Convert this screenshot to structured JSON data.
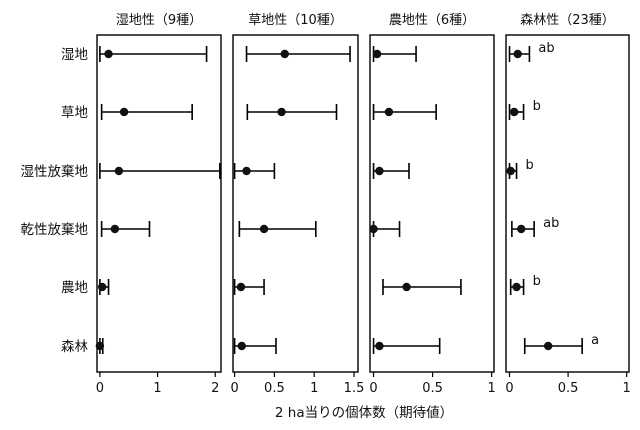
{
  "chart_data": {
    "type": "forest",
    "xlabel": "2 ha当りの個体数（期待値）",
    "categories": [
      "湿地",
      "草地",
      "湿性放棄地",
      "乾性放棄地",
      "農地",
      "森林"
    ],
    "panels": [
      {
        "title": "湿地性（9種）",
        "xlim": [
          -0.05,
          2.1
        ],
        "xticks": [
          0,
          1,
          2
        ],
        "xtick_labels": [
          "0",
          "1",
          "2"
        ],
        "points": [
          {
            "category": "湿地",
            "estimate": 0.15,
            "lower": 0.0,
            "upper": 1.85
          },
          {
            "category": "草地",
            "estimate": 0.42,
            "lower": 0.03,
            "upper": 1.6
          },
          {
            "category": "湿性放棄地",
            "estimate": 0.33,
            "lower": 0.0,
            "upper": 2.08
          },
          {
            "category": "乾性放棄地",
            "estimate": 0.26,
            "lower": 0.03,
            "upper": 0.86
          },
          {
            "category": "農地",
            "estimate": 0.04,
            "lower": 0.0,
            "upper": 0.15
          },
          {
            "category": "森林",
            "estimate": 0.0,
            "lower": 0.0,
            "upper": 0.05
          }
        ],
        "letters": []
      },
      {
        "title": "草地性（10種）",
        "xlim": [
          -0.02,
          1.55
        ],
        "xticks": [
          0,
          0.5,
          1,
          1.5
        ],
        "xtick_labels": [
          "0",
          "0.5",
          "1",
          "1.5"
        ],
        "points": [
          {
            "category": "湿地",
            "estimate": 0.63,
            "lower": 0.15,
            "upper": 1.45
          },
          {
            "category": "草地",
            "estimate": 0.59,
            "lower": 0.16,
            "upper": 1.28
          },
          {
            "category": "湿性放棄地",
            "estimate": 0.15,
            "lower": 0.0,
            "upper": 0.5
          },
          {
            "category": "乾性放棄地",
            "estimate": 0.37,
            "lower": 0.06,
            "upper": 1.02
          },
          {
            "category": "農地",
            "estimate": 0.08,
            "lower": 0.0,
            "upper": 0.37
          },
          {
            "category": "森林",
            "estimate": 0.09,
            "lower": 0.0,
            "upper": 0.52
          }
        ],
        "letters": []
      },
      {
        "title": "農地性（6種）",
        "xlim": [
          -0.03,
          1.02
        ],
        "xticks": [
          0,
          0.5,
          1
        ],
        "xtick_labels": [
          "0",
          "0.5",
          "1"
        ],
        "points": [
          {
            "category": "湿地",
            "estimate": 0.03,
            "lower": 0.0,
            "upper": 0.36
          },
          {
            "category": "草地",
            "estimate": 0.13,
            "lower": 0.0,
            "upper": 0.53
          },
          {
            "category": "湿性放棄地",
            "estimate": 0.05,
            "lower": 0.0,
            "upper": 0.3
          },
          {
            "category": "乾性放棄地",
            "estimate": 0.0,
            "lower": 0.0,
            "upper": 0.22
          },
          {
            "category": "農地",
            "estimate": 0.28,
            "lower": 0.08,
            "upper": 0.74
          },
          {
            "category": "森林",
            "estimate": 0.05,
            "lower": 0.0,
            "upper": 0.56
          }
        ],
        "letters": []
      },
      {
        "title": "森林性（23種）",
        "xlim": [
          -0.03,
          1.02
        ],
        "xticks": [
          0,
          0.5,
          1
        ],
        "xtick_labels": [
          "0",
          "0.5",
          "1"
        ],
        "points": [
          {
            "category": "湿地",
            "estimate": 0.07,
            "lower": 0.0,
            "upper": 0.17
          },
          {
            "category": "草地",
            "estimate": 0.04,
            "lower": 0.0,
            "upper": 0.12
          },
          {
            "category": "湿性放棄地",
            "estimate": 0.01,
            "lower": 0.0,
            "upper": 0.06
          },
          {
            "category": "乾性放棄地",
            "estimate": 0.1,
            "lower": 0.02,
            "upper": 0.21
          },
          {
            "category": "農地",
            "estimate": 0.06,
            "lower": 0.01,
            "upper": 0.12
          },
          {
            "category": "森林",
            "estimate": 0.33,
            "lower": 0.13,
            "upper": 0.62
          }
        ],
        "letters": [
          "ab",
          "b",
          "b",
          "ab",
          "b",
          "a"
        ]
      }
    ]
  }
}
